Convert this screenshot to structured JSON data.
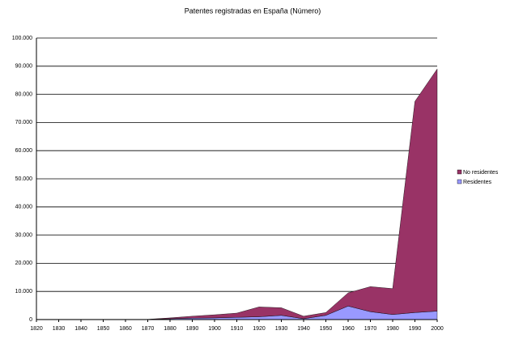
{
  "chart_data": {
    "type": "stacked-area",
    "title": "Patentes registradas en España (Número)",
    "x": [
      1820,
      1830,
      1840,
      1850,
      1860,
      1870,
      1880,
      1890,
      1900,
      1910,
      1920,
      1930,
      1940,
      1950,
      1960,
      1970,
      1980,
      1990,
      2000
    ],
    "series": [
      {
        "name": "Residentes",
        "color": "#9999ff",
        "values": [
          50,
          50,
          50,
          50,
          50,
          50,
          300,
          500,
          600,
          800,
          1000,
          1500,
          300,
          1500,
          4800,
          2800,
          1800,
          2500,
          3000
        ]
      },
      {
        "name": "No residentes",
        "color": "#993366",
        "values": [
          50,
          50,
          50,
          50,
          50,
          50,
          300,
          700,
          1100,
          1500,
          3500,
          2700,
          900,
          1000,
          4700,
          8900,
          9200,
          75000,
          86000
        ]
      }
    ],
    "xlim": [
      1820,
      2000
    ],
    "xticks": [
      1820,
      1830,
      1840,
      1850,
      1860,
      1870,
      1880,
      1890,
      1900,
      1910,
      1920,
      1930,
      1940,
      1950,
      1960,
      1970,
      1980,
      1990,
      2000
    ],
    "ylim": [
      0,
      100000
    ],
    "yticks": [
      0,
      {
        "value": 10000,
        "label": "10.000"
      },
      {
        "value": 20000,
        "label": "20.000"
      },
      {
        "value": 30000,
        "label": "30.000"
      },
      {
        "value": 40000,
        "label": "40.000"
      },
      {
        "value": 50000,
        "label": "50.000"
      },
      {
        "value": 60000,
        "label": "60.000"
      },
      {
        "value": 70000,
        "label": "70.000"
      },
      {
        "value": 80000,
        "label": "80.000"
      },
      {
        "value": 90000,
        "label": "90.000"
      },
      {
        "value": 100000,
        "label": "100.000"
      }
    ],
    "grid": true
  }
}
